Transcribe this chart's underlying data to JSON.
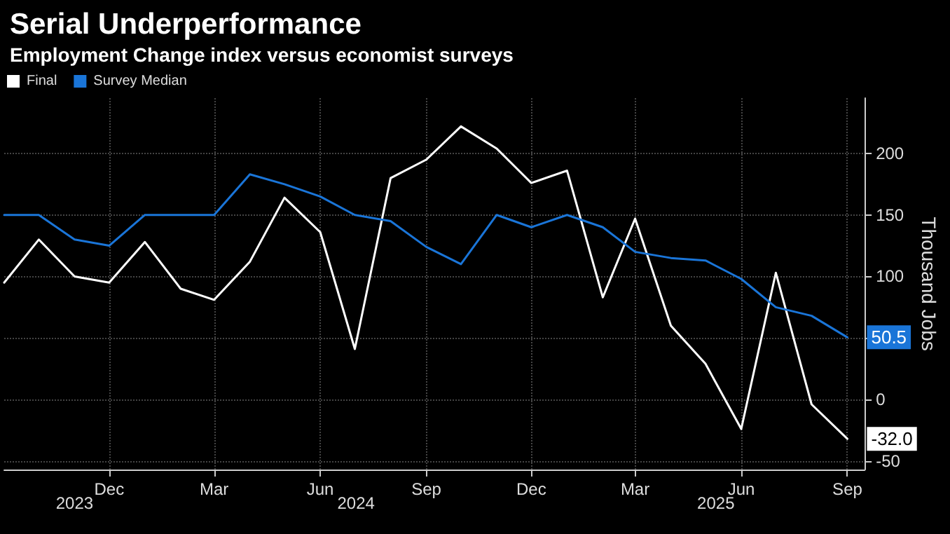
{
  "chart_data": {
    "type": "line",
    "title": "Serial Underperformance",
    "subtitle": "Employment Change index versus economist surveys",
    "ylabel": "Thousand Jobs",
    "x": [
      "2023-09",
      "2023-10",
      "2023-11",
      "2023-12",
      "2024-01",
      "2024-02",
      "2024-03",
      "2024-04",
      "2024-05",
      "2024-06",
      "2024-07",
      "2024-08",
      "2024-09",
      "2024-10",
      "2024-11",
      "2024-12",
      "2025-01",
      "2025-02",
      "2025-03",
      "2025-04",
      "2025-05",
      "2025-06",
      "2025-07",
      "2025-08",
      "2025-09"
    ],
    "series": [
      {
        "name": "Final",
        "color": "#ffffff",
        "values": [
          95,
          130,
          100,
          95,
          128,
          90,
          81,
          112,
          164,
          136,
          41,
          180,
          195,
          222,
          204,
          176,
          186,
          83,
          147,
          60,
          29,
          -24,
          103,
          -4,
          -32.0
        ],
        "value_labels": [
          null,
          null,
          null,
          null,
          null,
          null,
          null,
          null,
          null,
          null,
          null,
          null,
          null,
          null,
          null,
          null,
          null,
          null,
          null,
          null,
          null,
          null,
          null,
          null,
          "-32.0"
        ]
      },
      {
        "name": "Survey Median",
        "color": "#1a75d8",
        "values": [
          150,
          150,
          130,
          125,
          150,
          150,
          150,
          183,
          175,
          165,
          150,
          145,
          124,
          110,
          150,
          140,
          150,
          140,
          120,
          115,
          113,
          98,
          75,
          68,
          50.5
        ],
        "value_labels": [
          null,
          null,
          null,
          null,
          null,
          null,
          null,
          null,
          null,
          null,
          null,
          null,
          null,
          null,
          null,
          null,
          null,
          null,
          null,
          null,
          null,
          null,
          null,
          null,
          "50.5"
        ]
      }
    ],
    "xlim": [
      "2023-09",
      "2025-09-16"
    ],
    "xticks": [
      {
        "value": "2023-12",
        "label": "Dec"
      },
      {
        "value": "2024-03",
        "label": "Mar"
      },
      {
        "value": "2024-06",
        "label": "Jun"
      },
      {
        "value": "2024-09",
        "label": "Sep"
      },
      {
        "value": "2024-12",
        "label": "Dec"
      },
      {
        "value": "2025-03",
        "label": "Mar"
      },
      {
        "value": "2025-06",
        "label": "Jun"
      },
      {
        "value": "2025-09",
        "label": "Sep"
      }
    ],
    "ylim": [
      -57,
      245
    ],
    "yticks": [
      -50,
      0,
      {
        "value": 50,
        "label": null
      },
      100,
      150,
      200
    ],
    "annotations": [
      "2023",
      "2024",
      "2025"
    ],
    "grid": true,
    "legend": "top left",
    "marker": "none",
    "line_style": "solid"
  }
}
